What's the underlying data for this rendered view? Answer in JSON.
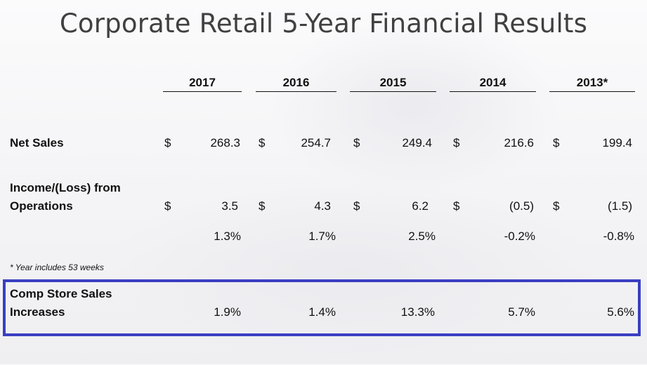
{
  "title": "Corporate Retail 5-Year Financial Results",
  "years": [
    "2017",
    "2016",
    "2015",
    "2014",
    "2013*"
  ],
  "rows": {
    "net_sales": {
      "label": "Net Sales",
      "currency": "$",
      "values": [
        "268.3",
        "254.7",
        "249.4",
        "216.6",
        "199.4"
      ]
    },
    "income": {
      "label_line1": "Income/(Loss) from",
      "label_line2": "Operations",
      "currency": "$",
      "values": [
        "3.5",
        "4.3",
        "6.2",
        "(0.5)",
        "(1.5)"
      ]
    },
    "income_pct": {
      "values": [
        "1.3%",
        "1.7%",
        "2.5%",
        "-0.2%",
        "-0.8%"
      ]
    },
    "comp_store": {
      "label_line1": "Comp Store Sales",
      "label_line2": "Increases",
      "values": [
        "1.9%",
        "1.4%",
        "13.3%",
        "5.7%",
        "5.6%"
      ]
    }
  },
  "footnote": "* Year includes 53 weeks",
  "highlight_color": "#3a3fc2"
}
